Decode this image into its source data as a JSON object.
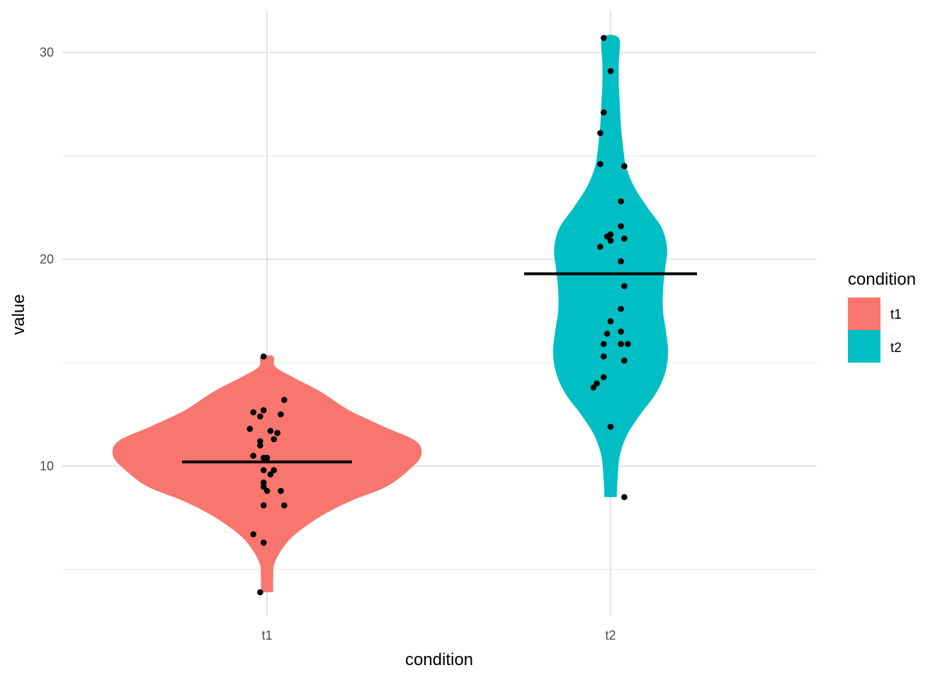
{
  "chart_data": {
    "type": "violin",
    "xlabel": "condition",
    "ylabel": "value",
    "categories": [
      "t1",
      "t2"
    ],
    "ylim": [
      3.5,
      31.4
    ],
    "y_ticks": [
      10,
      20,
      30
    ],
    "y_minor_ticks": [
      5,
      15,
      25
    ],
    "grid": true,
    "legend": {
      "title": "condition",
      "position": "right",
      "entries": [
        {
          "label": "t1",
          "color": "#F8766D"
        },
        {
          "label": "t2",
          "color": "#00BFC4"
        }
      ]
    },
    "series": [
      {
        "category": "t1",
        "color": "#F8766D",
        "mean": 10.2,
        "density": [
          [
            3.9,
            0.06
          ],
          [
            4.6,
            0.06
          ],
          [
            5.4,
            0.08
          ],
          [
            6.5,
            0.23
          ],
          [
            7.5,
            0.5
          ],
          [
            8.3,
            0.81
          ],
          [
            9.0,
            1.16
          ],
          [
            9.8,
            1.38
          ],
          [
            10.5,
            1.5
          ],
          [
            11.2,
            1.45
          ],
          [
            11.9,
            1.14
          ],
          [
            12.7,
            0.8
          ],
          [
            13.6,
            0.52
          ],
          [
            14.3,
            0.25
          ],
          [
            14.8,
            0.08
          ],
          [
            15.3,
            0.06
          ]
        ],
        "points": [
          {
            "x": -0.01,
            "y": 15.3
          },
          {
            "x": 0.05,
            "y": 13.2
          },
          {
            "x": -0.04,
            "y": 12.6
          },
          {
            "x": -0.01,
            "y": 12.7
          },
          {
            "x": -0.02,
            "y": 12.4
          },
          {
            "x": 0.04,
            "y": 12.5
          },
          {
            "x": -0.05,
            "y": 11.8
          },
          {
            "x": 0.01,
            "y": 11.7
          },
          {
            "x": 0.03,
            "y": 11.6
          },
          {
            "x": 0.02,
            "y": 11.3
          },
          {
            "x": -0.02,
            "y": 11.2
          },
          {
            "x": -0.02,
            "y": 11.0
          },
          {
            "x": -0.04,
            "y": 10.5
          },
          {
            "x": -0.01,
            "y": 10.4
          },
          {
            "x": 0.0,
            "y": 10.4
          },
          {
            "x": -0.01,
            "y": 9.8
          },
          {
            "x": 0.02,
            "y": 9.8
          },
          {
            "x": 0.01,
            "y": 9.6
          },
          {
            "x": -0.01,
            "y": 9.2
          },
          {
            "x": -0.01,
            "y": 9.0
          },
          {
            "x": 0.0,
            "y": 8.8
          },
          {
            "x": 0.04,
            "y": 8.8
          },
          {
            "x": -0.01,
            "y": 8.1
          },
          {
            "x": 0.05,
            "y": 8.1
          },
          {
            "x": -0.04,
            "y": 6.7
          },
          {
            "x": -0.01,
            "y": 6.3
          },
          {
            "x": -0.02,
            "y": 3.9
          }
        ]
      },
      {
        "category": "t2",
        "color": "#00BFC4",
        "mean": 19.3,
        "density": [
          [
            8.5,
            0.06
          ],
          [
            9.5,
            0.07
          ],
          [
            10.5,
            0.09
          ],
          [
            11.5,
            0.16
          ],
          [
            12.5,
            0.29
          ],
          [
            13.5,
            0.44
          ],
          [
            14.5,
            0.53
          ],
          [
            15.5,
            0.56
          ],
          [
            16.5,
            0.54
          ],
          [
            17.5,
            0.51
          ],
          [
            18.5,
            0.51
          ],
          [
            19.5,
            0.53
          ],
          [
            20.5,
            0.55
          ],
          [
            21.5,
            0.5
          ],
          [
            22.5,
            0.36
          ],
          [
            23.5,
            0.23
          ],
          [
            24.5,
            0.15
          ],
          [
            25.5,
            0.12
          ],
          [
            26.5,
            0.1
          ],
          [
            27.5,
            0.09
          ],
          [
            28.5,
            0.08
          ],
          [
            29.5,
            0.08
          ],
          [
            30.7,
            0.08
          ]
        ],
        "points": [
          {
            "x": -0.02,
            "y": 30.7
          },
          {
            "x": 0.0,
            "y": 29.1
          },
          {
            "x": -0.02,
            "y": 27.1
          },
          {
            "x": -0.03,
            "y": 26.1
          },
          {
            "x": -0.03,
            "y": 24.6
          },
          {
            "x": 0.04,
            "y": 24.5
          },
          {
            "x": 0.03,
            "y": 22.8
          },
          {
            "x": 0.03,
            "y": 21.6
          },
          {
            "x": 0.0,
            "y": 21.2
          },
          {
            "x": -0.01,
            "y": 21.1
          },
          {
            "x": 0.04,
            "y": 21.0
          },
          {
            "x": 0.0,
            "y": 20.9
          },
          {
            "x": -0.03,
            "y": 20.6
          },
          {
            "x": 0.03,
            "y": 19.9
          },
          {
            "x": 0.04,
            "y": 18.7
          },
          {
            "x": 0.03,
            "y": 17.6
          },
          {
            "x": 0.0,
            "y": 17.0
          },
          {
            "x": 0.03,
            "y": 16.5
          },
          {
            "x": -0.01,
            "y": 16.4
          },
          {
            "x": -0.02,
            "y": 15.9
          },
          {
            "x": 0.03,
            "y": 15.9
          },
          {
            "x": 0.05,
            "y": 15.9
          },
          {
            "x": -0.02,
            "y": 15.3
          },
          {
            "x": 0.04,
            "y": 15.1
          },
          {
            "x": -0.02,
            "y": 14.3
          },
          {
            "x": -0.04,
            "y": 14.0
          },
          {
            "x": -0.05,
            "y": 13.8
          },
          {
            "x": 0.0,
            "y": 11.9
          },
          {
            "x": 0.04,
            "y": 8.5
          }
        ]
      }
    ]
  }
}
